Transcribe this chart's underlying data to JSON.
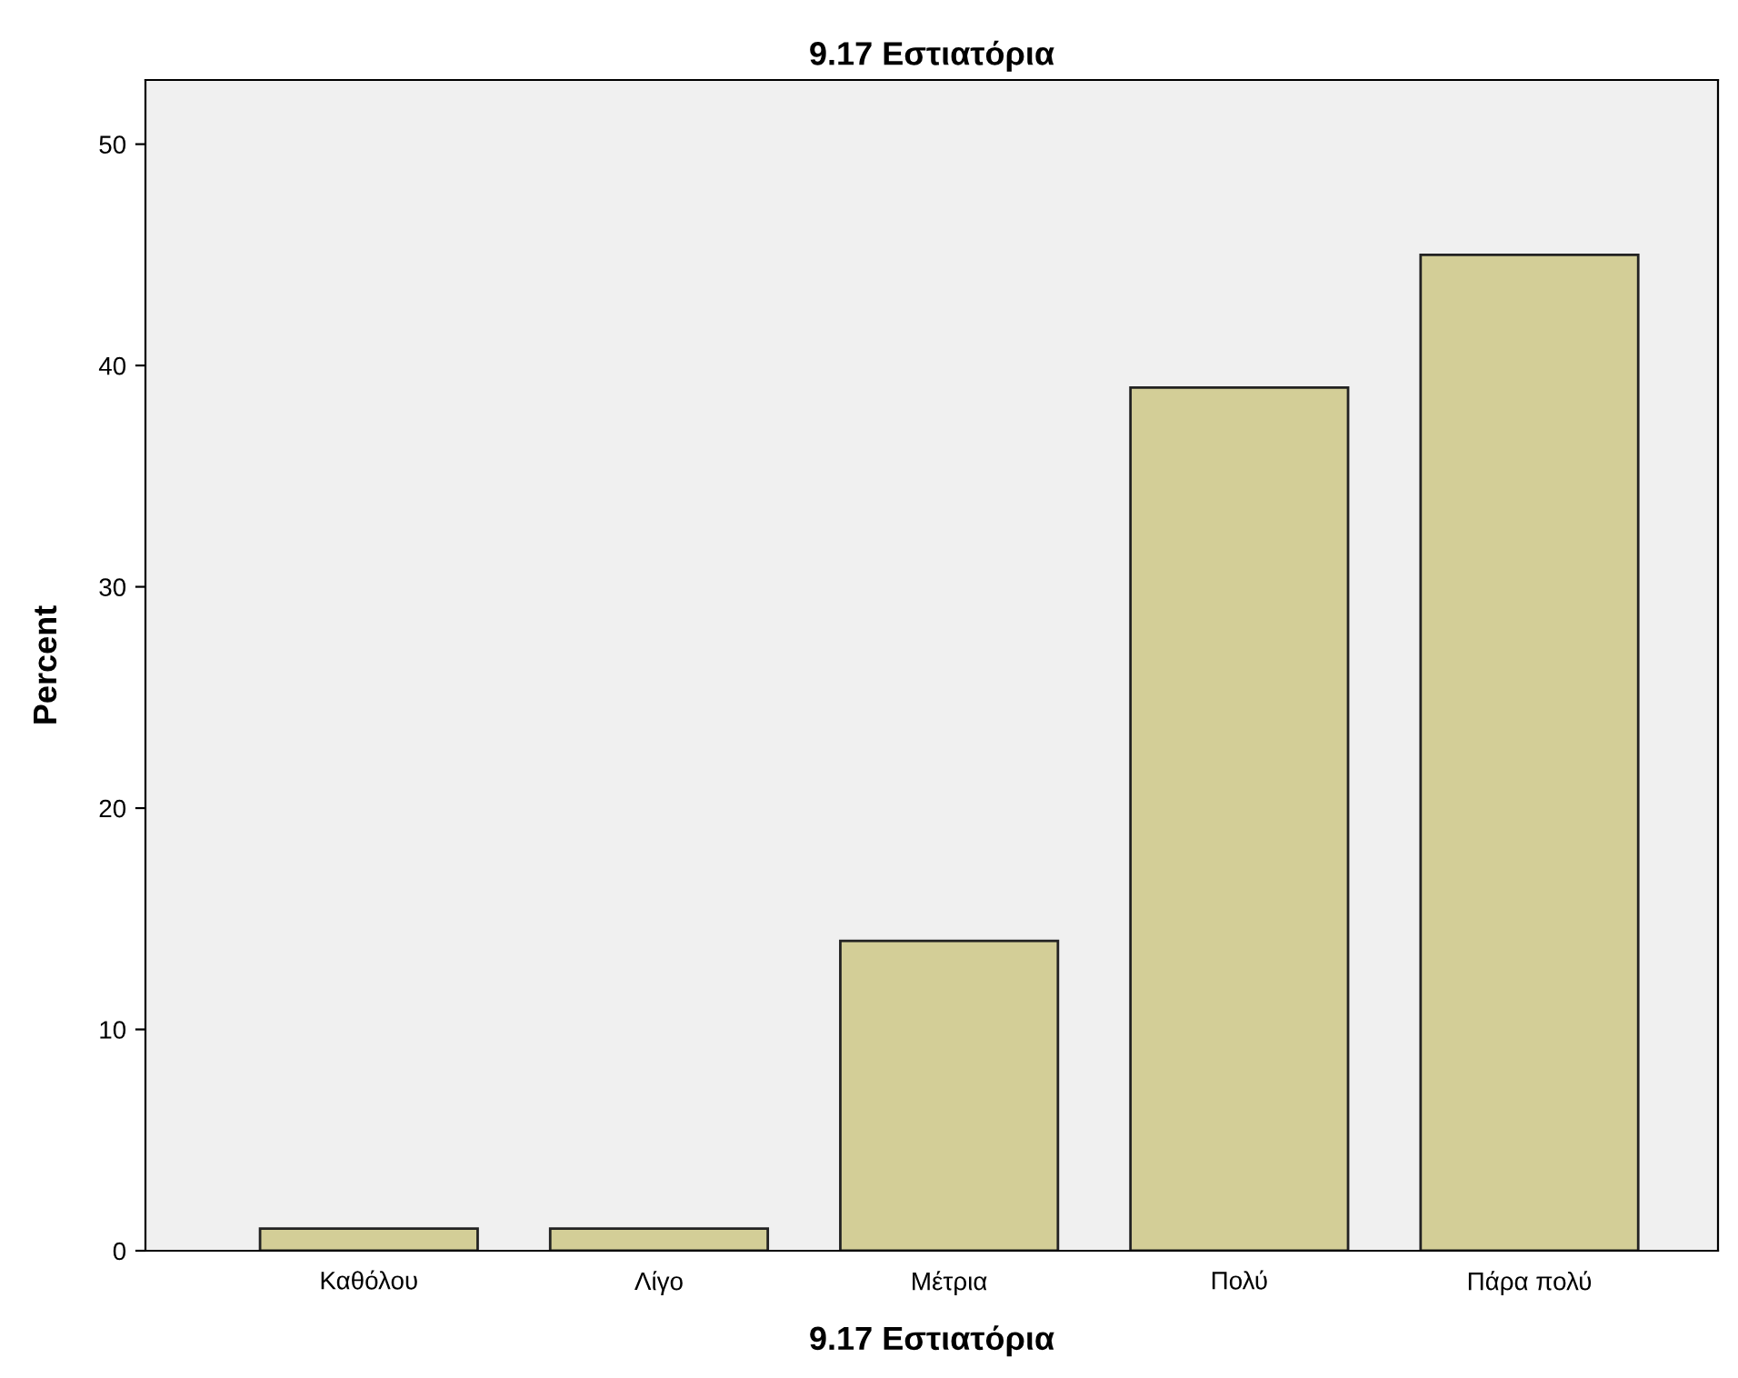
{
  "chart_data": {
    "type": "bar",
    "title": "9.17 Εστιατόρια",
    "xlabel": "9.17 Εστιατόρια",
    "ylabel": "Percent",
    "categories": [
      "Καθόλου",
      "Λίγο",
      "Μέτρια",
      "Πολύ",
      "Πάρα πολύ"
    ],
    "values": [
      1,
      1,
      14,
      39,
      45
    ],
    "color": "#d3ce97",
    "ylim": [
      0,
      52.9
    ],
    "yticks": [
      0,
      10,
      20,
      30,
      40,
      50
    ],
    "grid": false,
    "legend": false
  }
}
